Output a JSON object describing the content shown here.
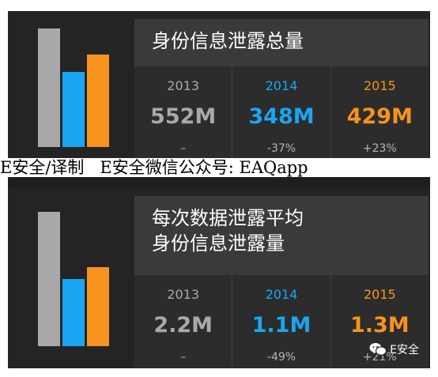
{
  "colors": {
    "gray": "#a9a9a9",
    "blue": "#1aa6f2",
    "orange": "#f7931e",
    "white": "#ffffff"
  },
  "icon": "bar-chart-icon",
  "watermark": "E安全/译制   E安全微信公众号: EAQapp",
  "badge": {
    "icon": "wechat-icon",
    "label": "E安全"
  },
  "chart_data": [
    {
      "type": "table",
      "title": "身份信息泄露总量",
      "categories": [
        "2013",
        "2014",
        "2015"
      ],
      "values": [
        552,
        348,
        429
      ],
      "value_labels": [
        "552M",
        "348M",
        "429M"
      ],
      "changes": [
        "–",
        "-37%",
        "+23%"
      ],
      "colors": [
        "gray",
        "blue",
        "orange"
      ]
    },
    {
      "type": "table",
      "title": [
        "每次数据泄露平均",
        "身份信息泄露量"
      ],
      "categories": [
        "2013",
        "2014",
        "2015"
      ],
      "values": [
        2.2,
        1.1,
        1.3
      ],
      "value_labels": [
        "2.2M",
        "1.1M",
        "1.3M"
      ],
      "changes": [
        "–",
        "-49%",
        "+21%"
      ],
      "colors": [
        "gray",
        "blue",
        "orange"
      ]
    }
  ]
}
